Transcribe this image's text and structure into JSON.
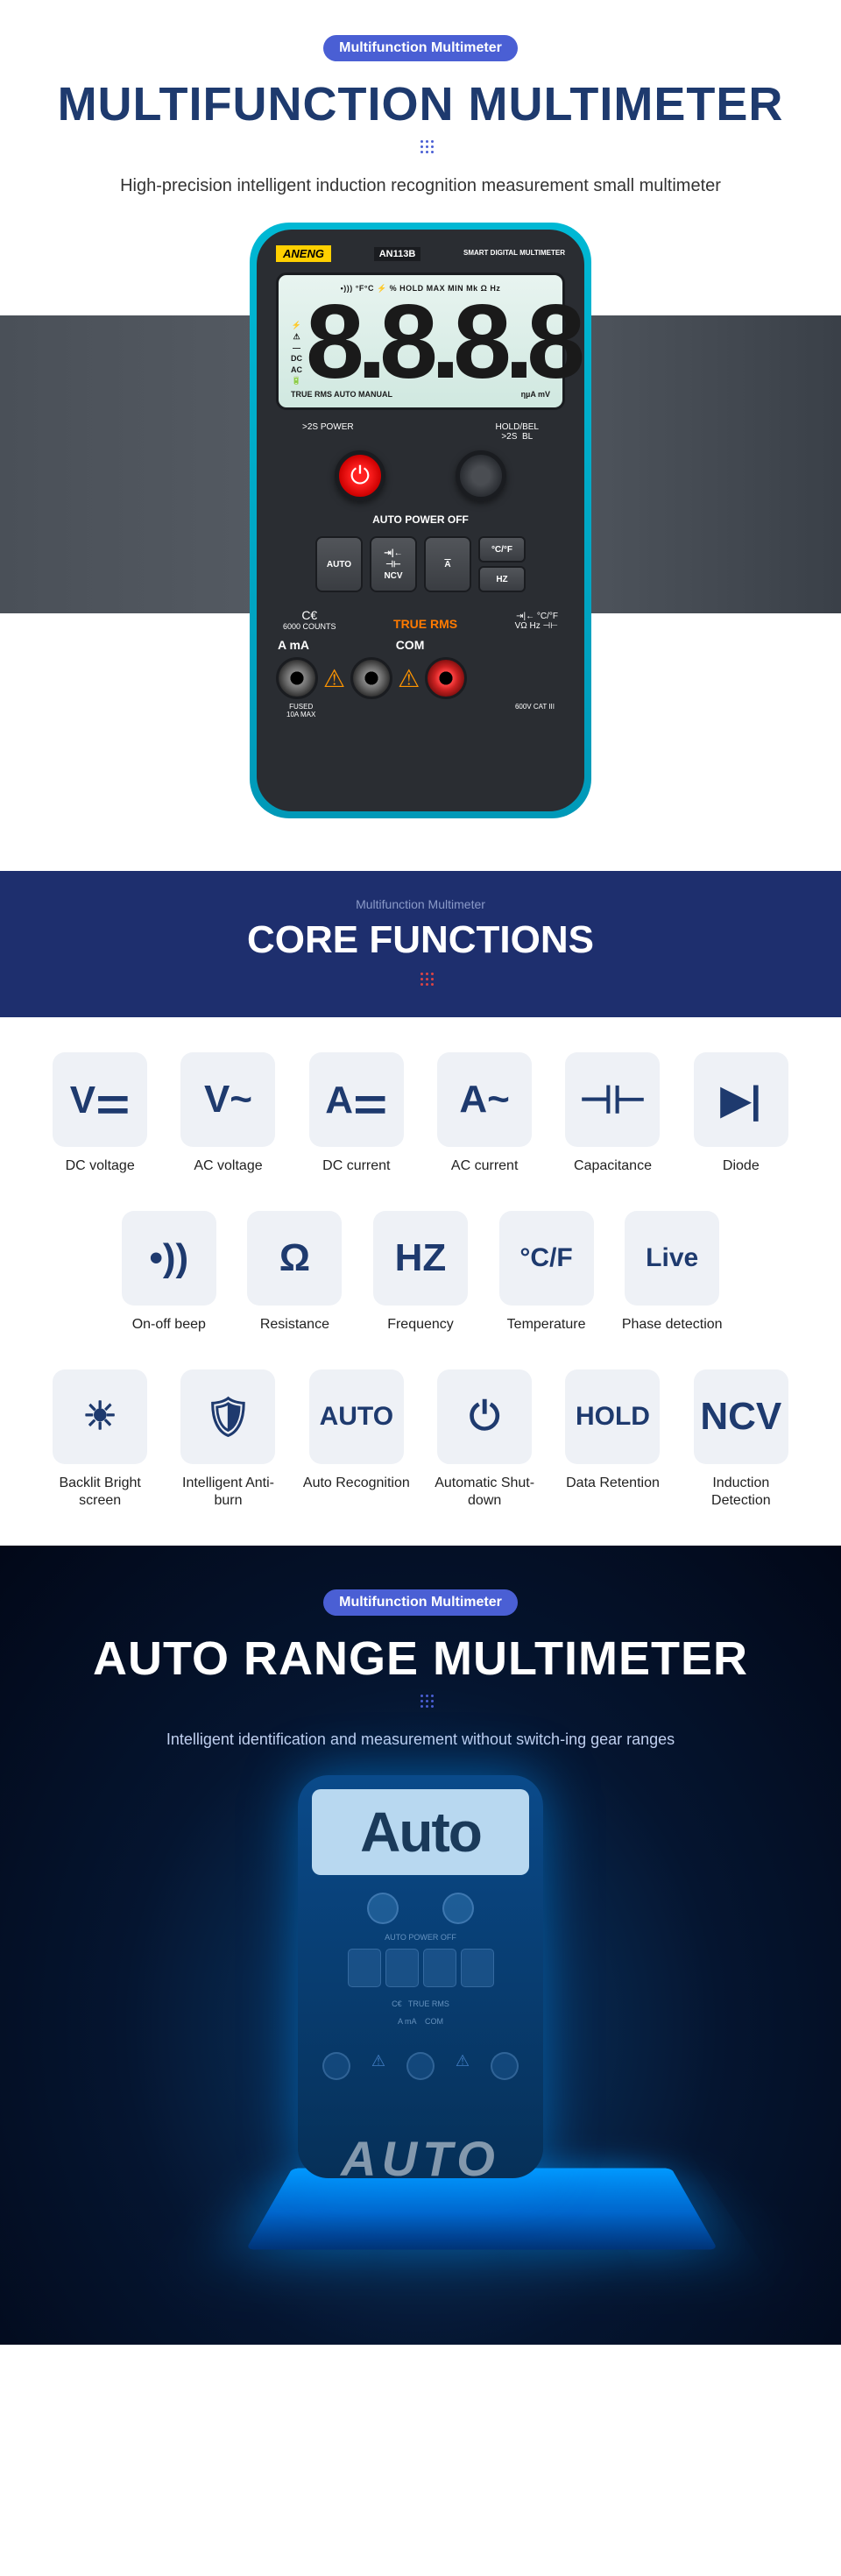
{
  "s1": {
    "badge": "Multifunction Multimeter",
    "title": "MULTIFUNCTION MULTIMETER",
    "sub": "High-precision intelligent induction recognition measurement small multimeter"
  },
  "meter": {
    "brand": "ANENG",
    "model": "AN113B",
    "desc": "SMART DIGITAL MULTIMETER",
    "lcd_r1": "•))) °F°C ⚡ % HOLD MAX MIN Mk Ω Hz",
    "lcd_side": "⚡\n⚠\n—\nDC\nAC\n🔋",
    "lcd_digits": "8.8.8.8",
    "lcd_r3a": "TRUE RMS  AUTO  MANUAL",
    "lcd_r3b": "ηµA   mV",
    "lbl_l": ">2S POWER",
    "lbl_r": "HOLD/BEL\n>2S  BL",
    "apo": "AUTO POWER OFF",
    "k1": "AUTO",
    "k2a": "⇥|←",
    "k2b": "⊣⊢",
    "k2c": "NCV",
    "k3": "A",
    "k4a": "°C/°F",
    "k4b": "HZ",
    "ce": "C€",
    "counts": "6000 COUNTS",
    "rms": "TRUE  RMS",
    "range": "⇥|← °C/°F\nVΩ Hz ⊣⊢",
    "pl": "A mA",
    "pc": "COM",
    "bl": "FUSED\n10A MAX",
    "br": "600V CAT III"
  },
  "s2": {
    "small": "Multifunction Multimeter",
    "title": "CORE FUNCTIONS"
  },
  "f": [
    {
      "i": "V⚌",
      "l": "DC voltage"
    },
    {
      "i": "V~",
      "l": "AC voltage"
    },
    {
      "i": "A⚌",
      "l": "DC current"
    },
    {
      "i": "A~",
      "l": "AC current"
    },
    {
      "i": "⊣⊢",
      "l": "Capacitance"
    },
    {
      "i": "▶|",
      "l": "Diode"
    },
    {
      "i": "•))",
      "l": "On-off beep"
    },
    {
      "i": "Ω",
      "l": "Resistance"
    },
    {
      "i": "HZ",
      "l": "Frequency"
    },
    {
      "i": "°C/F",
      "l": "Temperature"
    },
    {
      "i": "Live",
      "l": "Phase detection"
    },
    {
      "i": "☀",
      "l": "Backlit Bright screen"
    },
    {
      "i": "🛡",
      "l": "Intelligent Anti-burn"
    },
    {
      "i": "AUTO",
      "l": "Auto Recognition"
    },
    {
      "i": "⏻",
      "l": "Automatic Shut-down"
    },
    {
      "i": "HOLD",
      "l": "Data Retention"
    },
    {
      "i": "NCV",
      "l": "Induction Detection"
    }
  ],
  "s3": {
    "badge": "Multifunction Multimeter",
    "title": "AUTO RANGE MULTIMETER",
    "sub": "Intelligent identification and measurement without switch-ing gear ranges",
    "lcd": "Auto",
    "plat": "AUTO"
  },
  "colors": {
    "navy": "#1e3a6e",
    "badge": "#4a5fd4",
    "cyan": "#00b8d4",
    "dark": "#2a2d32",
    "orange": "#ff7a00",
    "tile": "#eef1f6",
    "sec2": "#1e2f6e"
  }
}
